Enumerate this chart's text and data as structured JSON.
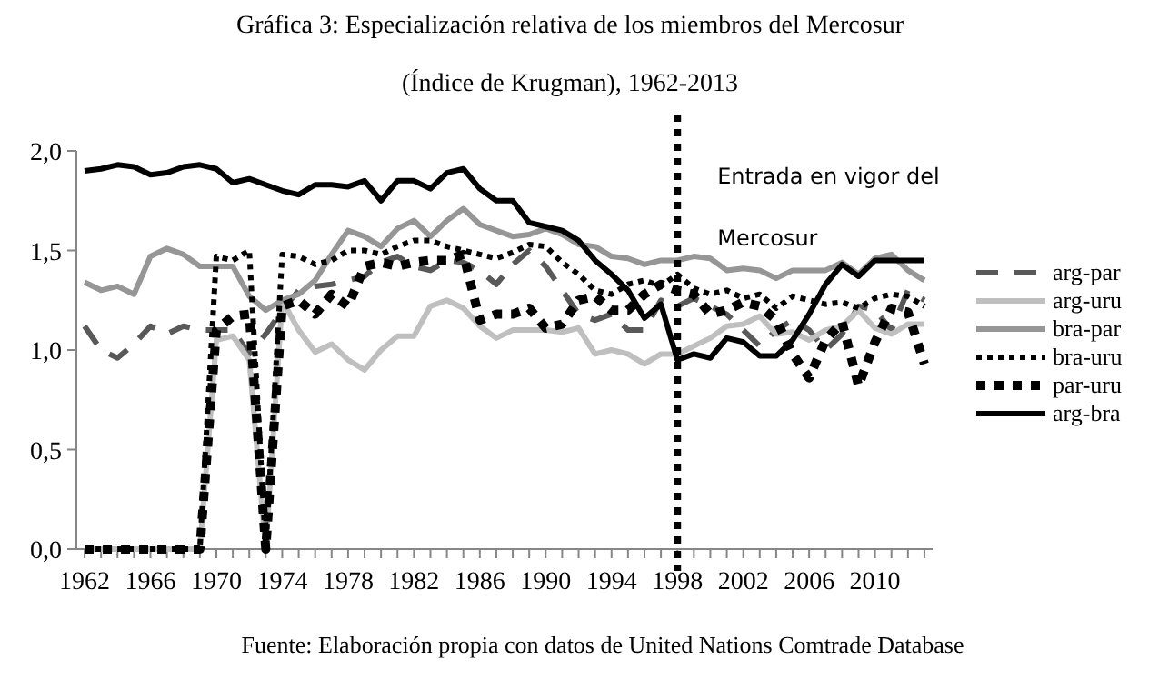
{
  "chart_data": {
    "type": "line",
    "title": "Gráfica 3: Especialización relativa de los miembros del Mercosur",
    "subtitle": "(Índice de Krugman), 1962-2013",
    "annotations": [
      "Fuente: Elaboración propia con datos de United Nations Comtrade Database"
    ],
    "x": [
      1962,
      1963,
      1964,
      1965,
      1966,
      1967,
      1968,
      1969,
      1970,
      1971,
      1972,
      1973,
      1974,
      1975,
      1976,
      1977,
      1978,
      1979,
      1980,
      1981,
      1982,
      1983,
      1984,
      1985,
      1986,
      1987,
      1988,
      1989,
      1990,
      1991,
      1992,
      1993,
      1994,
      1995,
      1996,
      1997,
      1998,
      1999,
      2000,
      2001,
      2002,
      2003,
      2004,
      2005,
      2006,
      2007,
      2008,
      2009,
      2010,
      2011,
      2012,
      2013
    ],
    "xlim": [
      1961.5,
      2013.5
    ],
    "xticks": [
      1962,
      1966,
      1970,
      1974,
      1978,
      1982,
      1986,
      1990,
      1994,
      1998,
      2002,
      2006,
      2010
    ],
    "ylim": [
      0,
      2
    ],
    "yticks": [
      {
        "value": 0,
        "label": "0,0"
      },
      {
        "value": 0.5,
        "label": "0,5"
      },
      {
        "value": 1,
        "label": "1,0"
      },
      {
        "value": 1.5,
        "label": "1,5"
      },
      {
        "value": 2,
        "label": "2,0"
      }
    ],
    "grid": false,
    "legend": "right",
    "marker": "none",
    "ref_lines": [
      {
        "axis": "x",
        "value": 1998,
        "label": "Entrada en vigor del Mercosur",
        "color": "#000000",
        "line_style": "dotted"
      }
    ],
    "series": [
      {
        "name": "arg-par",
        "color": "#595959",
        "line_style": "dashed",
        "values": [
          1.12,
          1.0,
          0.96,
          1.03,
          1.12,
          1.08,
          1.12,
          1.1,
          1.1,
          1.1,
          0.98,
          1.08,
          1.2,
          1.3,
          1.32,
          1.33,
          1.35,
          1.37,
          1.44,
          1.47,
          1.42,
          1.4,
          1.45,
          1.44,
          1.4,
          1.33,
          1.43,
          1.5,
          1.42,
          1.3,
          1.18,
          1.15,
          1.18,
          1.1,
          1.1,
          1.25,
          1.22,
          1.26,
          1.22,
          1.18,
          1.1,
          1.02,
          1.1,
          1.15,
          1.1,
          1.0,
          1.08,
          1.22,
          1.2,
          1.1,
          1.3,
          1.25
        ]
      },
      {
        "name": "arg-uru",
        "color": "#bfbfbf",
        "line_style": "solid",
        "values": [
          0,
          0,
          0,
          0,
          0,
          0,
          0,
          0,
          1.05,
          1.07,
          0.95,
          0,
          1.25,
          1.1,
          0.99,
          1.03,
          0.95,
          0.9,
          1.0,
          1.07,
          1.07,
          1.22,
          1.25,
          1.21,
          1.12,
          1.06,
          1.1,
          1.1,
          1.1,
          1.09,
          1.11,
          0.98,
          1.0,
          0.98,
          0.93,
          0.98,
          0.98,
          1.02,
          1.06,
          1.12,
          1.13,
          1.17,
          1.08,
          1.09,
          1.05,
          1.1,
          1.12,
          1.2,
          1.11,
          1.08,
          1.13,
          1.13
        ]
      },
      {
        "name": "bra-par",
        "color": "#969696",
        "line_style": "solid",
        "values": [
          1.34,
          1.3,
          1.32,
          1.28,
          1.47,
          1.51,
          1.48,
          1.42,
          1.42,
          1.42,
          1.27,
          1.2,
          1.25,
          1.28,
          1.35,
          1.48,
          1.6,
          1.57,
          1.52,
          1.61,
          1.65,
          1.57,
          1.65,
          1.71,
          1.63,
          1.6,
          1.57,
          1.58,
          1.61,
          1.58,
          1.53,
          1.52,
          1.47,
          1.46,
          1.43,
          1.45,
          1.45,
          1.47,
          1.46,
          1.4,
          1.41,
          1.4,
          1.36,
          1.4,
          1.4,
          1.4,
          1.44,
          1.38,
          1.46,
          1.48,
          1.4,
          1.35
        ]
      },
      {
        "name": "bra-uru",
        "color": "#000000",
        "line_style": "dotted",
        "values": [
          0,
          0,
          0,
          0,
          0,
          0,
          0,
          0,
          1.47,
          1.45,
          1.5,
          0,
          1.48,
          1.47,
          1.43,
          1.45,
          1.5,
          1.5,
          1.48,
          1.52,
          1.55,
          1.55,
          1.52,
          1.5,
          1.48,
          1.46,
          1.49,
          1.53,
          1.52,
          1.44,
          1.38,
          1.3,
          1.28,
          1.33,
          1.35,
          1.32,
          1.38,
          1.31,
          1.28,
          1.3,
          1.26,
          1.28,
          1.21,
          1.27,
          1.25,
          1.23,
          1.24,
          1.21,
          1.26,
          1.28,
          1.27,
          1.22
        ]
      },
      {
        "name": "par-uru",
        "color": "#000000",
        "line_style": "dotted",
        "values": [
          0,
          0,
          0,
          0,
          0,
          0,
          0,
          0,
          1.1,
          1.17,
          1.18,
          0,
          1.22,
          1.25,
          1.18,
          1.28,
          1.22,
          1.42,
          1.44,
          1.42,
          1.44,
          1.45,
          1.45,
          1.48,
          1.15,
          1.18,
          1.18,
          1.21,
          1.11,
          1.13,
          1.25,
          1.27,
          1.2,
          1.2,
          1.28,
          1.33,
          1.3,
          1.28,
          1.18,
          1.2,
          1.24,
          1.22,
          1.15,
          0.98,
          0.86,
          1.05,
          1.14,
          0.82,
          1.04,
          1.21,
          1.19,
          0.93
        ]
      },
      {
        "name": "arg-bra",
        "color": "#000000",
        "line_style": "solid",
        "values": [
          1.9,
          1.91,
          1.93,
          1.92,
          1.88,
          1.89,
          1.92,
          1.93,
          1.91,
          1.84,
          1.86,
          1.83,
          1.8,
          1.78,
          1.83,
          1.83,
          1.82,
          1.85,
          1.75,
          1.85,
          1.85,
          1.81,
          1.89,
          1.91,
          1.81,
          1.75,
          1.75,
          1.64,
          1.62,
          1.6,
          1.55,
          1.45,
          1.38,
          1.3,
          1.16,
          1.23,
          0.95,
          0.98,
          0.96,
          1.06,
          1.04,
          0.97,
          0.97,
          1.05,
          1.18,
          1.33,
          1.43,
          1.37,
          1.45,
          1.45,
          1.45,
          1.45
        ]
      }
    ]
  }
}
